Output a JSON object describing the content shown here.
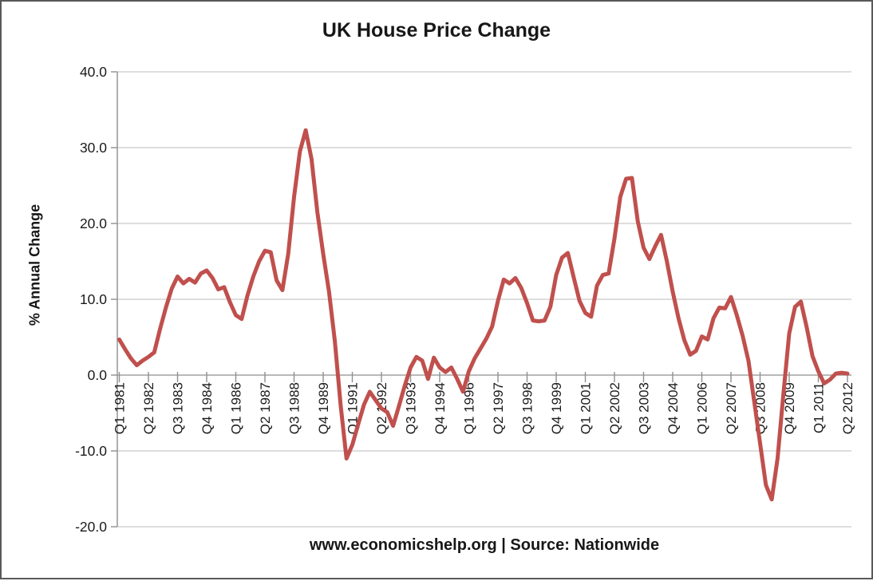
{
  "footer": {
    "text": "www.economicshelp.org | Source: Nationwide"
  },
  "colors": {
    "line": "#C0504D",
    "gridline": "#C9C9C9",
    "axis": "#8F8F8F",
    "text": "#1a1a1a",
    "background": "#ffffff"
  },
  "chart_data": {
    "type": "line",
    "title": "UK House Price Change",
    "xlabel": "",
    "ylabel": "% Annual Change",
    "x_range": [
      "Q1 1981",
      "Q2 2012"
    ],
    "x_interval": "quarterly",
    "ylim": [
      -20,
      40
    ],
    "grid": true,
    "legend_position": "none",
    "y_ticks": [
      40,
      30,
      20,
      10,
      0,
      -10,
      -20
    ],
    "y_tick_labels": [
      "40.0",
      "30.0",
      "20.0",
      "10.0",
      "0.0",
      "-10.0",
      "-20.0"
    ],
    "x_tick_labels": [
      "Q1 1981",
      "Q2 1982",
      "Q3 1983",
      "Q4 1984",
      "Q1 1986",
      "Q2 1987",
      "Q3 1988",
      "Q4 1989",
      "Q1 1991",
      "Q2 1992",
      "Q3 1993",
      "Q4 1994",
      "Q1 1996",
      "Q2 1997",
      "Q3 1998",
      "Q4 1999",
      "Q1 2001",
      "Q2 2002",
      "Q3 2003",
      "Q4 2004",
      "Q1 2006",
      "Q2 2007",
      "Q3 2008",
      "Q4 2009",
      "Q1 2011",
      "Q2 2012"
    ],
    "x_ticks_every_n_points": 5,
    "line_color": "#C0504D",
    "values": [
      4.7,
      3.4,
      2.2,
      1.3,
      1.9,
      2.4,
      3.0,
      6.1,
      8.9,
      11.4,
      13.0,
      12.1,
      12.7,
      12.2,
      13.4,
      13.8,
      12.8,
      11.3,
      11.6,
      9.6,
      7.9,
      7.4,
      10.5,
      13.0,
      15.0,
      16.4,
      16.2,
      12.5,
      11.2,
      16.0,
      23.5,
      29.5,
      32.3,
      28.5,
      21.5,
      16.0,
      11.0,
      4.5,
      -4.0,
      -11.0,
      -9.2,
      -6.5,
      -3.9,
      -2.2,
      -3.3,
      -4.4,
      -4.9,
      -6.7,
      -4.1,
      -1.4,
      1.0,
      2.4,
      1.9,
      -0.5,
      2.3,
      1.0,
      0.4,
      1.0,
      -0.5,
      -2.2,
      0.5,
      2.2,
      3.5,
      4.8,
      6.4,
      9.8,
      12.6,
      12.1,
      12.8,
      11.5,
      9.5,
      7.2,
      7.1,
      7.2,
      9.0,
      13.2,
      15.5,
      16.1,
      12.9,
      9.8,
      8.2,
      7.7,
      11.8,
      13.2,
      13.4,
      18.0,
      23.5,
      25.9,
      26.0,
      20.3,
      16.8,
      15.3,
      17.0,
      18.5,
      15.0,
      11.0,
      7.5,
      4.6,
      2.7,
      3.2,
      5.1,
      4.7,
      7.5,
      8.9,
      8.8,
      10.3,
      7.9,
      5.2,
      1.9,
      -3.5,
      -9.0,
      -14.5,
      -16.4,
      -11.0,
      -2.5,
      5.5,
      9.0,
      9.7,
      6.3,
      2.5,
      0.5,
      -1.1,
      -0.6,
      0.2,
      0.3,
      0.2
    ]
  }
}
